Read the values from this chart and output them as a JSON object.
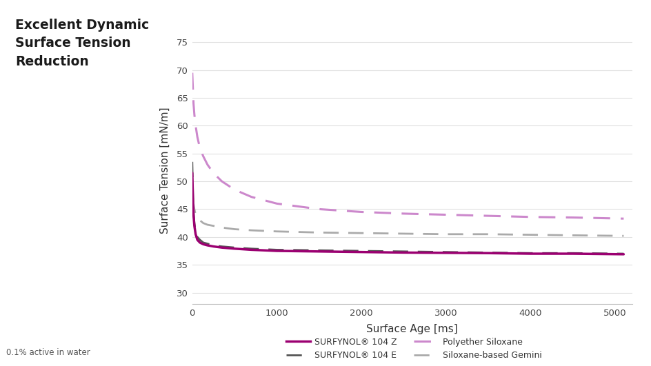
{
  "title": "Excellent Dynamic\nSurface Tension\nReduction",
  "xlabel": "Surface Age [ms]",
  "ylabel": "Surface Tension [mN/m]",
  "footnote": "0.1% active in water",
  "xlim": [
    0,
    5200
  ],
  "ylim": [
    28,
    76
  ],
  "yticks": [
    30,
    35,
    40,
    45,
    50,
    55,
    60,
    65,
    70,
    75
  ],
  "xticks": [
    0,
    1000,
    2000,
    3000,
    4000,
    5000
  ],
  "background_color": "#ffffff",
  "grid_color": "#e0e0e0",
  "curves": {
    "surfynol_104z": {
      "label": "SURFYNOL® 104 Z",
      "color": "#9b0071",
      "linewidth": 2.5,
      "linestyle": "solid",
      "x": [
        0,
        8,
        15,
        25,
        40,
        60,
        90,
        130,
        180,
        250,
        350,
        500,
        700,
        1000,
        1500,
        2000,
        2500,
        3000,
        3500,
        4000,
        4500,
        5100
      ],
      "y": [
        51.5,
        47.0,
        44.0,
        42.0,
        40.5,
        39.5,
        39.0,
        38.7,
        38.5,
        38.3,
        38.1,
        37.9,
        37.7,
        37.5,
        37.4,
        37.3,
        37.2,
        37.15,
        37.1,
        37.0,
        37.0,
        36.9
      ]
    },
    "surfynol_104e": {
      "label": "SURFYNOL® 104 E",
      "color": "#555555",
      "linewidth": 2.0,
      "linestyle": "dashed",
      "x": [
        0,
        8,
        15,
        25,
        40,
        60,
        90,
        130,
        180,
        250,
        350,
        500,
        700,
        1000,
        1500,
        2000,
        2500,
        3000,
        3500,
        4000,
        4500,
        5100
      ],
      "y": [
        53.5,
        48.0,
        44.5,
        42.5,
        41.0,
        40.0,
        39.5,
        39.0,
        38.8,
        38.5,
        38.3,
        38.1,
        37.9,
        37.7,
        37.6,
        37.5,
        37.4,
        37.3,
        37.2,
        37.1,
        37.1,
        37.0
      ]
    },
    "polyether_siloxane": {
      "label": "Polyether Siloxane",
      "color": "#cc88cc",
      "linewidth": 2.2,
      "linestyle": "dashed",
      "x": [
        0,
        8,
        15,
        25,
        40,
        60,
        90,
        130,
        180,
        250,
        350,
        500,
        700,
        1000,
        1500,
        2000,
        2500,
        3000,
        3500,
        4000,
        4500,
        5100
      ],
      "y": [
        69.5,
        66.5,
        64.0,
        62.0,
        60.0,
        58.0,
        56.0,
        54.5,
        53.0,
        51.5,
        50.0,
        48.5,
        47.2,
        46.0,
        45.0,
        44.5,
        44.2,
        44.0,
        43.8,
        43.6,
        43.5,
        43.3
      ]
    },
    "siloxane_gemini": {
      "label": "Siloxane-based Gemini",
      "color": "#aaaaaa",
      "linewidth": 2.0,
      "linestyle": "dashed",
      "x": [
        0,
        8,
        15,
        25,
        40,
        60,
        90,
        130,
        180,
        250,
        350,
        500,
        700,
        1000,
        1500,
        2000,
        2500,
        3000,
        3500,
        4000,
        4500,
        5100
      ],
      "y": [
        51.5,
        48.0,
        46.0,
        45.0,
        44.0,
        43.5,
        43.0,
        42.5,
        42.2,
        42.0,
        41.7,
        41.4,
        41.2,
        41.0,
        40.8,
        40.7,
        40.6,
        40.5,
        40.5,
        40.4,
        40.3,
        40.2
      ]
    }
  },
  "legend_order": [
    "surfynol_104z",
    "surfynol_104e",
    "polyether_siloxane",
    "siloxane_gemini"
  ]
}
